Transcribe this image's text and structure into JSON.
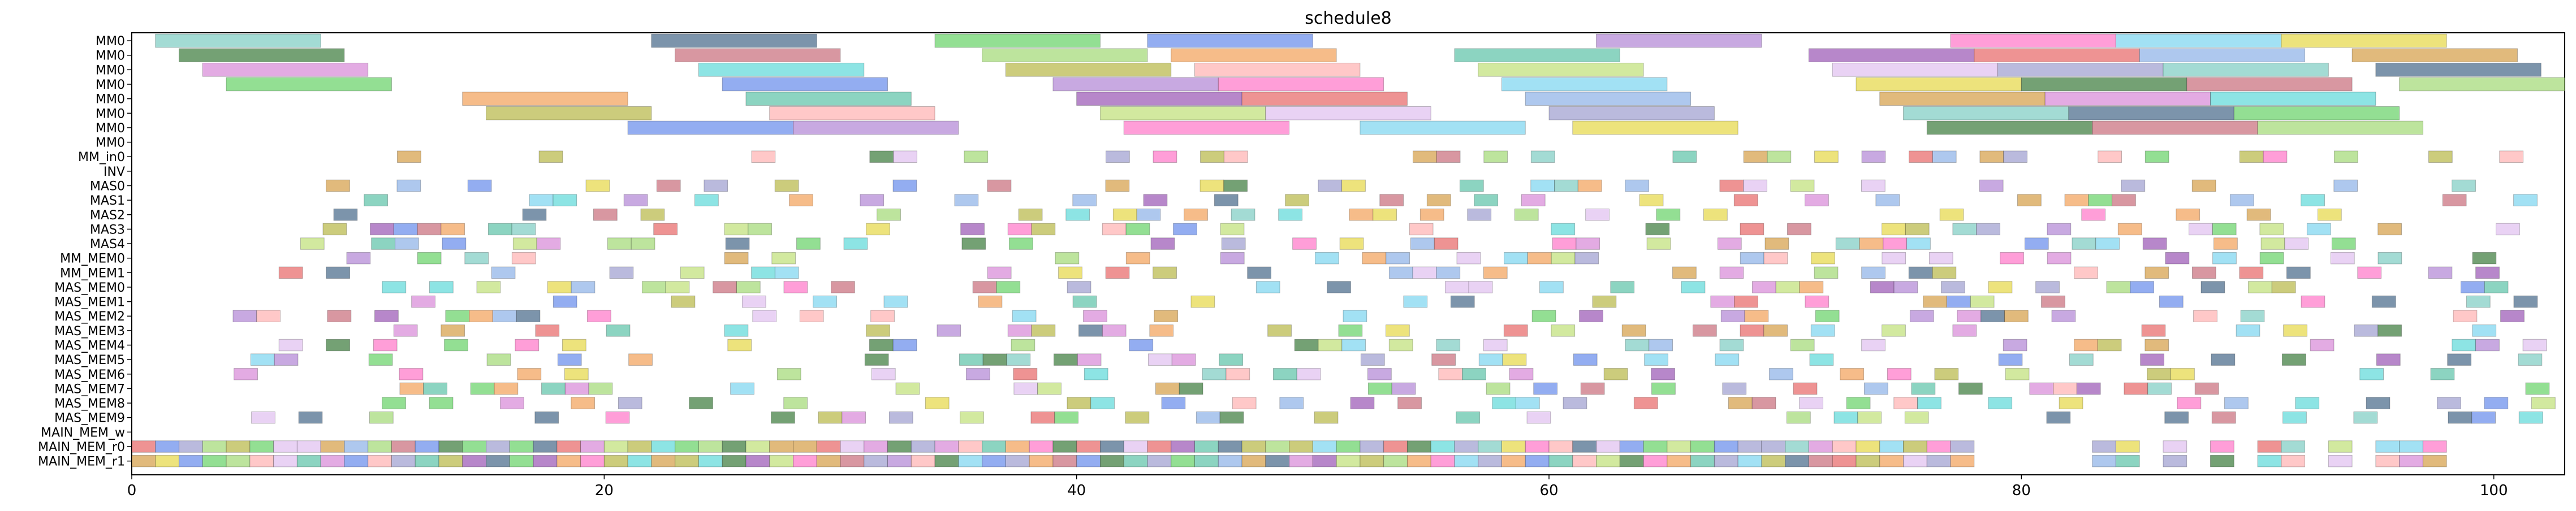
{
  "chart_data": {
    "type": "gantt",
    "title": "schedule8",
    "xlabel": "",
    "ylabel": "",
    "xlim": [
      0,
      103
    ],
    "x_ticks": [
      0,
      20,
      40,
      60,
      80,
      100
    ],
    "x_tick_labels": [
      "0",
      "20",
      "40",
      "60",
      "80",
      "100"
    ],
    "rows": [
      "MM0",
      "MM0",
      "MM0",
      "MM0",
      "MM0",
      "MM0",
      "MM0",
      "MM0",
      "MM_in0",
      "INV",
      "MAS0",
      "MAS1",
      "MAS2",
      "MAS3",
      "MAS4",
      "MM_MEM0",
      "MM_MEM1",
      "MAS_MEM0",
      "MAS_MEM1",
      "MAS_MEM2",
      "MAS_MEM3",
      "MAS_MEM4",
      "MAS_MEM5",
      "MAS_MEM6",
      "MAS_MEM7",
      "MAS_MEM8",
      "MAS_MEM9",
      "MAIN_MEM_w",
      "MAIN_MEM_r0",
      "MAIN_MEM_r1"
    ],
    "grid": false,
    "legend": "none",
    "palette": [
      "#7fcdc4",
      "#4a6b8a",
      "#6ad36a",
      "#6a8dec",
      "#b388d6",
      "#ff79c9",
      "#7ed6f0",
      "#e6d84a",
      "#3e7d3e",
      "#c96f7d",
      "#a3d977",
      "#f2a25c",
      "#5fc4a9",
      "#9b59b6",
      "#e86a6a",
      "#8fb3e8",
      "#d6a04a",
      "#d88ad8",
      "#61d9d9",
      "#b8b84a",
      "#ffb3b3",
      "#c0e07a",
      "#e0c0f0",
      "#a0a0d0"
    ],
    "series": [
      {
        "row": 0,
        "tasks": [
          [
            1,
            8
          ],
          [
            22,
            29
          ],
          [
            34,
            41
          ],
          [
            43,
            50
          ],
          [
            62,
            69
          ],
          [
            77,
            84
          ],
          [
            84,
            91
          ],
          [
            91,
            98
          ]
        ]
      },
      {
        "row": 1,
        "tasks": [
          [
            2,
            9
          ],
          [
            23,
            30
          ],
          [
            36,
            43
          ],
          [
            44,
            51
          ],
          [
            56,
            63
          ],
          [
            71,
            78
          ],
          [
            78,
            85
          ],
          [
            85,
            92
          ],
          [
            94,
            101
          ]
        ]
      },
      {
        "row": 2,
        "tasks": [
          [
            3,
            10
          ],
          [
            24,
            31
          ],
          [
            37,
            44
          ],
          [
            45,
            52
          ],
          [
            57,
            64
          ],
          [
            72,
            79
          ],
          [
            79,
            86
          ],
          [
            86,
            93
          ],
          [
            95,
            102
          ]
        ]
      },
      {
        "row": 3,
        "tasks": [
          [
            4,
            11
          ],
          [
            25,
            32
          ],
          [
            39,
            46
          ],
          [
            46,
            53
          ],
          [
            58,
            65
          ],
          [
            73,
            80
          ],
          [
            80,
            87
          ],
          [
            87,
            94
          ],
          [
            96,
            103
          ]
        ]
      },
      {
        "row": 4,
        "tasks": [
          [
            14,
            21
          ],
          [
            26,
            33
          ],
          [
            40,
            47
          ],
          [
            47,
            54
          ],
          [
            59,
            66
          ],
          [
            74,
            81
          ],
          [
            81,
            88
          ],
          [
            88,
            95
          ]
        ]
      },
      {
        "row": 5,
        "tasks": [
          [
            15,
            22
          ],
          [
            27,
            34
          ],
          [
            41,
            48
          ],
          [
            48,
            55
          ],
          [
            60,
            67
          ],
          [
            75,
            82
          ],
          [
            82,
            89
          ],
          [
            89,
            96
          ]
        ]
      },
      {
        "row": 6,
        "tasks": [
          [
            21,
            28
          ],
          [
            28,
            35
          ],
          [
            42,
            49
          ],
          [
            52,
            59
          ],
          [
            61,
            68
          ],
          [
            76,
            83
          ],
          [
            83,
            90
          ],
          [
            90,
            97
          ]
        ]
      }
    ]
  }
}
